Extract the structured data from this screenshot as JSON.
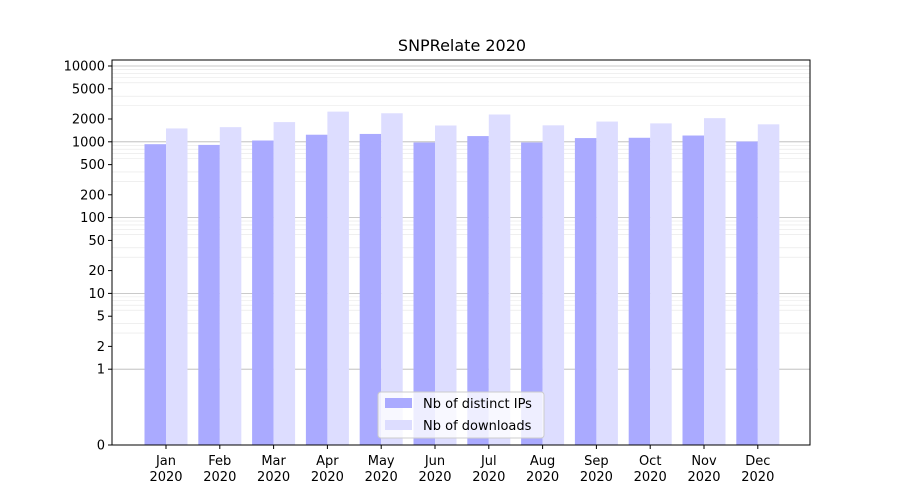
{
  "chart_data": {
    "type": "bar",
    "title": "SNPRelate 2020",
    "categories": [
      "Jan\n2020",
      "Feb\n2020",
      "Mar\n2020",
      "Apr\n2020",
      "May\n2020",
      "Jun\n2020",
      "Jul\n2020",
      "Aug\n2020",
      "Sep\n2020",
      "Oct\n2020",
      "Nov\n2020",
      "Dec\n2020"
    ],
    "series": [
      {
        "name": "Nb of distinct IPs",
        "color": "#aaaaff",
        "values": [
          930,
          910,
          1040,
          1240,
          1270,
          980,
          1190,
          980,
          1120,
          1130,
          1210,
          1010
        ]
      },
      {
        "name": "Nb of downloads",
        "color": "#ddddff",
        "values": [
          1500,
          1560,
          1820,
          2500,
          2380,
          1640,
          2290,
          1650,
          1850,
          1750,
          2050,
          1700
        ]
      }
    ],
    "y_scale": "symlog",
    "ylim": [
      0,
      12000
    ],
    "y_ticks": [
      0,
      1,
      2,
      5,
      10,
      20,
      50,
      100,
      200,
      500,
      1000,
      2000,
      5000,
      10000
    ],
    "grid": true,
    "legend_position": "bottom-center"
  }
}
